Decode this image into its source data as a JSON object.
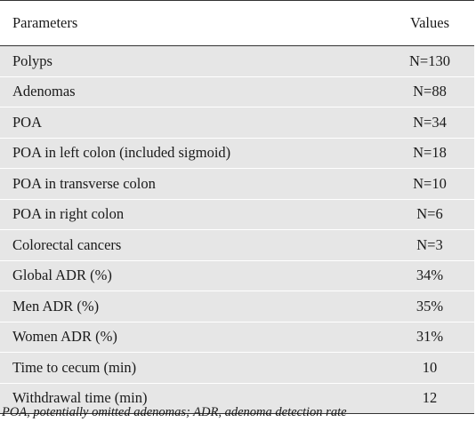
{
  "table": {
    "headers": {
      "parameter": "Parameters",
      "value": "Values"
    },
    "rows": [
      {
        "parameter": "Polyps",
        "value": "N=130"
      },
      {
        "parameter": "Adenomas",
        "value": "N=88"
      },
      {
        "parameter": "POA",
        "value": "N=34"
      },
      {
        "parameter": "POA in left colon (included sigmoid)",
        "value": "N=18"
      },
      {
        "parameter": "POA in transverse colon",
        "value": "N=10"
      },
      {
        "parameter": "POA in right colon",
        "value": "N=6"
      },
      {
        "parameter": "Colorectal cancers",
        "value": "N=3"
      },
      {
        "parameter": "Global ADR (%)",
        "value": "34%"
      },
      {
        "parameter": "Men ADR (%)",
        "value": "35%"
      },
      {
        "parameter": "Women ADR (%)",
        "value": "31%"
      },
      {
        "parameter": "Time to cecum (min)",
        "value": "10"
      },
      {
        "parameter": "Withdrawal time (min)",
        "value": "12"
      }
    ]
  },
  "footnote": "POA, potentially omitted adenomas; ADR, adenoma detection rate",
  "colors": {
    "row_shade": "#e6e6e6",
    "rule": "#333333",
    "text": "#1a1a1a"
  }
}
